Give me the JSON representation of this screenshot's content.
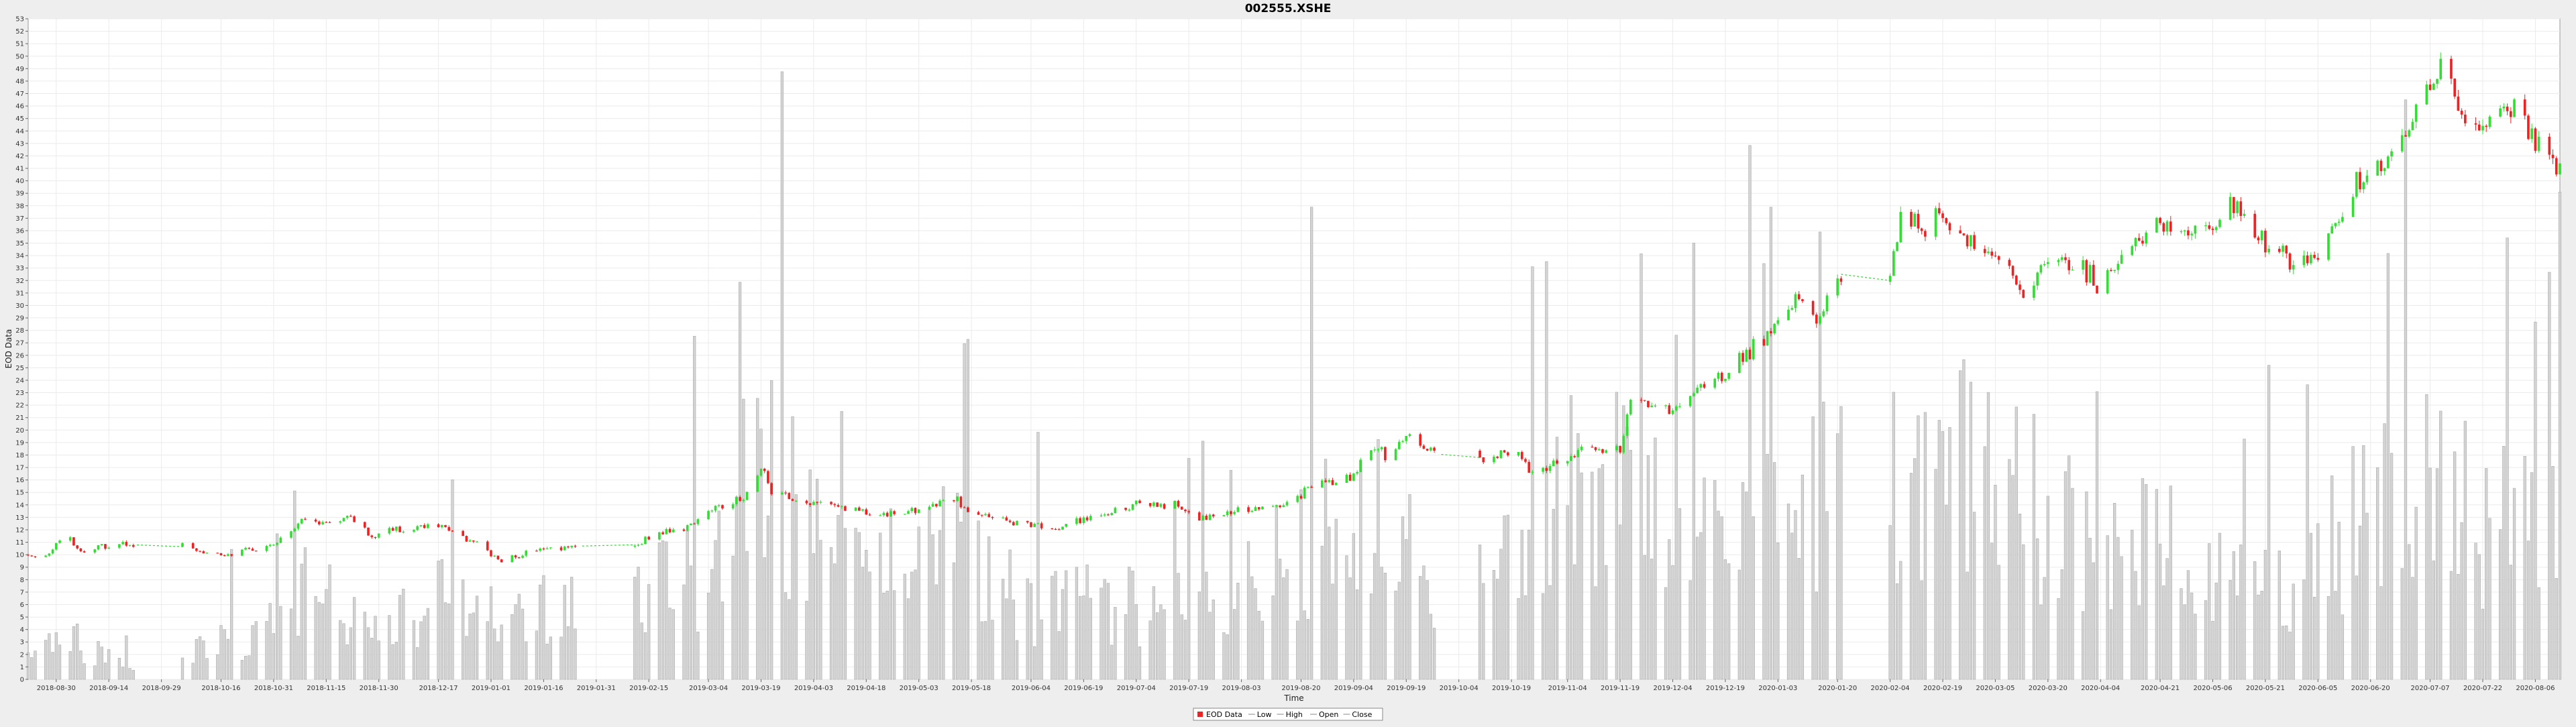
{
  "chart_data": {
    "type": "candlestick",
    "title": "002555.XSHE",
    "xlabel": "Time",
    "ylabel": "EOD Data",
    "ylim": [
      0,
      53
    ],
    "yticks": [
      0,
      1,
      2,
      3,
      4,
      5,
      6,
      7,
      8,
      9,
      10,
      11,
      12,
      13,
      14,
      15,
      16,
      17,
      18,
      19,
      20,
      21,
      22,
      23,
      24,
      25,
      26,
      27,
      28,
      29,
      30,
      31,
      32,
      33,
      34,
      35,
      36,
      37,
      38,
      39,
      40,
      41,
      42,
      43,
      44,
      45,
      46,
      47,
      48,
      49,
      50,
      51,
      52,
      53
    ],
    "x_range": [
      "2018-08-22",
      "2020-08-13"
    ],
    "xticks": [
      "2018-08-30",
      "2018-09-14",
      "2018-09-29",
      "2018-10-16",
      "2018-10-31",
      "2018-11-15",
      "2018-11-30",
      "2018-12-17",
      "2019-01-01",
      "2019-01-16",
      "2019-01-31",
      "2019-02-15",
      "2019-03-04",
      "2019-03-19",
      "2019-04-03",
      "2019-04-18",
      "2019-05-03",
      "2019-05-18",
      "2019-06-04",
      "2019-06-19",
      "2019-07-04",
      "2019-07-19",
      "2019-08-03",
      "2019-08-20",
      "2019-09-04",
      "2019-09-19",
      "2019-10-04",
      "2019-10-19",
      "2019-11-04",
      "2019-11-19",
      "2019-12-04",
      "2019-12-19",
      "2020-01-03",
      "2020-01-20",
      "2020-02-04",
      "2020-02-19",
      "2020-03-05",
      "2020-03-20",
      "2020-04-04",
      "2020-04-21",
      "2020-05-06",
      "2020-05-21",
      "2020-06-05",
      "2020-06-20",
      "2020-07-07",
      "2020-07-22",
      "2020-08-06"
    ],
    "grid": true,
    "legend": {
      "placement": "bottom-center",
      "entries": [
        "EOD Data",
        "Low",
        "High",
        "Open",
        "Close"
      ]
    },
    "colors": {
      "up": "#33dd33",
      "down": "#ee2222",
      "volume": "#d4d4d4",
      "volume_edge": "#aaaaaa",
      "dotted_line": "#44cc44",
      "plot_bg": "#ffffff",
      "grid": "#ebebeb"
    },
    "gaps": [
      [
        "2018-09-23",
        "2018-10-04"
      ],
      [
        "2019-01-28",
        "2019-02-10"
      ],
      [
        "2019-09-30",
        "2019-10-09"
      ],
      [
        "2020-01-22",
        "2020-02-03"
      ]
    ],
    "price_path": [
      [
        "2018-08-22",
        10.0
      ],
      [
        "2018-08-28",
        10.2
      ],
      [
        "2018-09-01",
        11.6
      ],
      [
        "2018-09-03",
        11.4
      ],
      [
        "2018-09-06",
        10.2
      ],
      [
        "2018-09-10",
        10.5
      ],
      [
        "2018-09-20",
        10.8
      ],
      [
        "2018-10-04",
        10.7
      ],
      [
        "2018-10-10",
        10.4
      ],
      [
        "2018-10-16",
        10.0
      ],
      [
        "2018-10-31",
        10.8
      ],
      [
        "2018-11-08",
        12.8
      ],
      [
        "2018-11-15",
        12.4
      ],
      [
        "2018-11-22",
        13.0
      ],
      [
        "2018-11-28",
        11.5
      ],
      [
        "2018-12-05",
        12.0
      ],
      [
        "2018-12-17",
        12.4
      ],
      [
        "2018-12-28",
        10.8
      ],
      [
        "2019-01-03",
        9.5
      ],
      [
        "2019-01-10",
        10.0
      ],
      [
        "2019-01-16",
        10.4
      ],
      [
        "2019-01-27",
        10.7
      ],
      [
        "2019-02-11",
        10.8
      ],
      [
        "2019-02-20",
        11.9
      ],
      [
        "2019-02-28",
        12.4
      ],
      [
        "2019-03-06",
        13.8
      ],
      [
        "2019-03-14",
        14.5
      ],
      [
        "2019-03-19",
        16.9
      ],
      [
        "2019-03-22",
        15.1
      ],
      [
        "2019-04-03",
        14.0
      ],
      [
        "2019-04-18",
        13.5
      ],
      [
        "2019-05-03",
        13.4
      ],
      [
        "2019-05-12",
        14.6
      ],
      [
        "2019-05-20",
        13.2
      ],
      [
        "2019-06-04",
        12.4
      ],
      [
        "2019-06-12",
        12.2
      ],
      [
        "2019-06-19",
        12.8
      ],
      [
        "2019-07-04",
        14.0
      ],
      [
        "2019-07-15",
        14.0
      ],
      [
        "2019-07-22",
        13.0
      ],
      [
        "2019-08-03",
        13.5
      ],
      [
        "2019-08-15",
        14.0
      ],
      [
        "2019-08-25",
        15.8
      ],
      [
        "2019-09-04",
        16.2
      ],
      [
        "2019-09-08",
        18.7
      ],
      [
        "2019-09-14",
        18.0
      ],
      [
        "2019-09-19",
        19.6
      ],
      [
        "2019-09-27",
        18.1
      ],
      [
        "2019-10-10",
        17.8
      ],
      [
        "2019-10-15",
        18.0
      ],
      [
        "2019-10-21",
        18.0
      ],
      [
        "2019-10-24",
        16.5
      ],
      [
        "2019-10-31",
        17.2
      ],
      [
        "2019-11-04",
        18.0
      ],
      [
        "2019-11-14",
        18.5
      ],
      [
        "2019-11-19",
        18.3
      ],
      [
        "2019-11-22",
        22.5
      ],
      [
        "2019-12-04",
        21.5
      ],
      [
        "2019-12-08",
        22.5
      ],
      [
        "2019-12-19",
        24.5
      ],
      [
        "2020-01-03",
        28.5
      ],
      [
        "2020-01-08",
        30.5
      ],
      [
        "2020-01-14",
        29.0
      ],
      [
        "2020-01-21",
        32.5
      ],
      [
        "2020-02-04",
        32.0
      ],
      [
        "2020-02-07",
        37.5
      ],
      [
        "2020-02-12",
        36.5
      ],
      [
        "2020-02-19",
        37.0
      ],
      [
        "2020-02-27",
        35.0
      ],
      [
        "2020-03-09",
        33.0
      ],
      [
        "2020-03-12",
        31.0
      ],
      [
        "2020-03-20",
        33.5
      ],
      [
        "2020-03-30",
        33.0
      ],
      [
        "2020-04-04",
        31.5
      ],
      [
        "2020-04-10",
        34.0
      ],
      [
        "2020-04-21",
        36.5
      ],
      [
        "2020-04-28",
        36.0
      ],
      [
        "2020-05-06",
        36.0
      ],
      [
        "2020-05-12",
        38.0
      ],
      [
        "2020-05-21",
        35.0
      ],
      [
        "2020-05-30",
        33.5
      ],
      [
        "2020-06-05",
        34.0
      ],
      [
        "2020-06-12",
        38.0
      ],
      [
        "2020-06-20",
        41.0
      ],
      [
        "2020-07-01",
        44.0
      ],
      [
        "2020-07-07",
        48.0
      ],
      [
        "2020-07-10",
        50.0
      ],
      [
        "2020-07-15",
        46.0
      ],
      [
        "2020-07-22",
        44.0
      ],
      [
        "2020-08-01",
        46.0
      ],
      [
        "2020-08-06",
        43.5
      ],
      [
        "2020-08-13",
        41.0
      ]
    ],
    "volume_scale": 16,
    "volume_path": [
      [
        "2018-08-22",
        2.5
      ],
      [
        "2018-09-03",
        4.0
      ],
      [
        "2018-09-20",
        1.5
      ],
      [
        "2018-10-04",
        3.0
      ],
      [
        "2018-10-31",
        5.0
      ],
      [
        "2018-11-08",
        9.5
      ],
      [
        "2018-11-30",
        5.0
      ],
      [
        "2018-12-17",
        8.0
      ],
      [
        "2019-01-01",
        6.0
      ],
      [
        "2019-01-16",
        8.0
      ],
      [
        "2019-01-27",
        7.0
      ],
      [
        "2019-02-11",
        8.0
      ],
      [
        "2019-03-04",
        11.0
      ],
      [
        "2019-03-19",
        22.0
      ],
      [
        "2019-04-03",
        14.0
      ],
      [
        "2019-04-18",
        9.0
      ],
      [
        "2019-05-03",
        14.0
      ],
      [
        "2019-05-12",
        17.0
      ],
      [
        "2019-06-04",
        7.0
      ],
      [
        "2019-06-19",
        8.0
      ],
      [
        "2019-07-19",
        7.0
      ],
      [
        "2019-08-03",
        9.0
      ],
      [
        "2019-08-25",
        14.0
      ],
      [
        "2019-09-10",
        16.0
      ],
      [
        "2019-09-27",
        10.0
      ],
      [
        "2019-10-10",
        9.0
      ],
      [
        "2019-10-25",
        14.0
      ],
      [
        "2019-11-19",
        24.0
      ],
      [
        "2019-12-04",
        16.0
      ],
      [
        "2019-12-19",
        15.0
      ],
      [
        "2020-01-03",
        16.0
      ],
      [
        "2020-01-21",
        19.0
      ],
      [
        "2020-02-04",
        20.0
      ],
      [
        "2020-02-19",
        23.0
      ],
      [
        "2020-03-05",
        20.0
      ],
      [
        "2020-03-20",
        16.0
      ],
      [
        "2020-04-04",
        13.0
      ],
      [
        "2020-04-21",
        13.0
      ],
      [
        "2020-05-06",
        11.0
      ],
      [
        "2020-05-21",
        9.0
      ],
      [
        "2020-06-05",
        12.0
      ],
      [
        "2020-06-20",
        17.0
      ],
      [
        "2020-07-07",
        20.0
      ],
      [
        "2020-07-22",
        16.0
      ],
      [
        "2020-08-13",
        14.0
      ]
    ]
  }
}
